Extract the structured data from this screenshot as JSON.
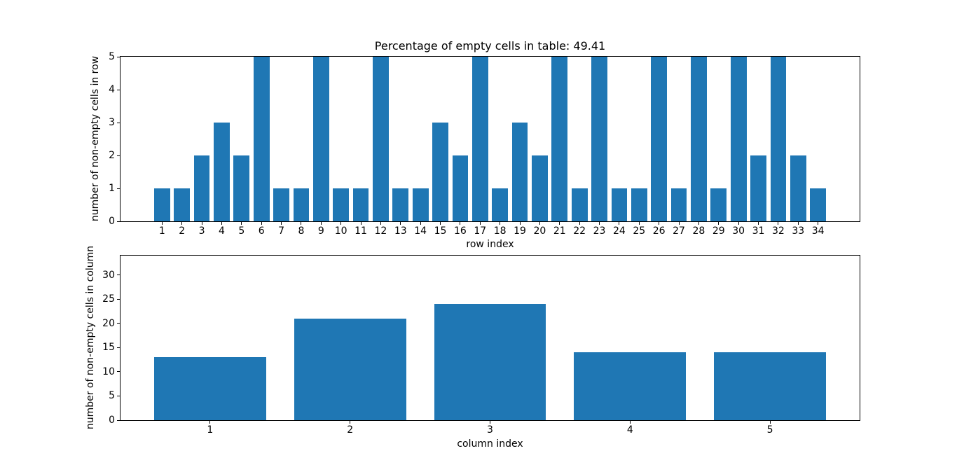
{
  "figure": {
    "background": "#ffffff",
    "bar_color": "#1f77b4",
    "spine_color": "#000000",
    "text_color": "#000000"
  },
  "chart_data": [
    {
      "type": "bar",
      "title": "Percentage of empty cells in table: 49.41",
      "xlabel": "row index",
      "ylabel": "number of non-empty cells in row",
      "categories": [
        1,
        2,
        3,
        4,
        5,
        6,
        7,
        8,
        9,
        10,
        11,
        12,
        13,
        14,
        15,
        16,
        17,
        18,
        19,
        20,
        21,
        22,
        23,
        24,
        25,
        26,
        27,
        28,
        29,
        30,
        31,
        32,
        33,
        34
      ],
      "values": [
        1,
        1,
        2,
        3,
        2,
        5,
        1,
        1,
        5,
        1,
        1,
        5,
        1,
        1,
        3,
        2,
        5,
        1,
        3,
        2,
        5,
        1,
        5,
        1,
        1,
        5,
        1,
        5,
        1,
        5,
        2,
        5,
        2,
        1
      ],
      "bar_width": 0.8,
      "xlim": [
        -1.09,
        36.09
      ],
      "ylim": [
        0,
        5
      ],
      "yticks": [
        0,
        1,
        2,
        3,
        4,
        5
      ],
      "grid": false,
      "legend": null
    },
    {
      "type": "bar",
      "title": "",
      "xlabel": "column index",
      "ylabel": "number of non-empty cells in column",
      "categories": [
        1,
        2,
        3,
        4,
        5
      ],
      "values": [
        13,
        21,
        24,
        14,
        14
      ],
      "bar_width": 0.8,
      "xlim": [
        0.36,
        5.64
      ],
      "ylim": [
        0,
        34
      ],
      "yticks": [
        0,
        5,
        10,
        15,
        20,
        25,
        30
      ],
      "grid": false,
      "legend": null
    }
  ]
}
